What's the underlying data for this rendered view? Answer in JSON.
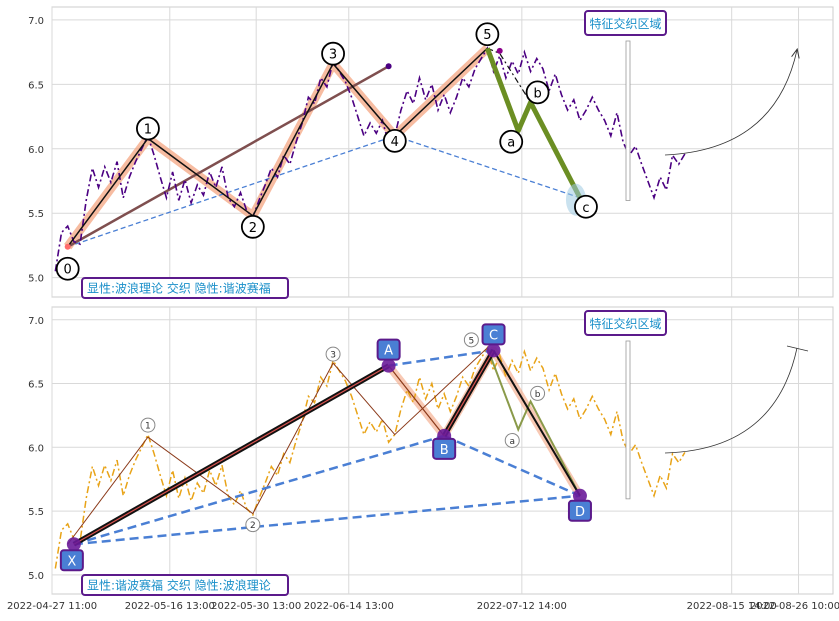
{
  "chart_data": [
    {
      "type": "line",
      "panel": "top",
      "ylim": [
        4.85,
        7.1
      ],
      "yticks": [
        "5.0",
        "5.5",
        "6.0",
        "6.5",
        "7.0"
      ],
      "x_domain": [
        "2022-04-27 11:00",
        "2022-09-01 00:00"
      ],
      "xticks": [
        "2022-04-27 11:00",
        "2022-05-16 13:00",
        "2022-05-30 13:00",
        "2022-06-14 13:00",
        "2022-07-12 14:00",
        "2022-08-15 14:00",
        "2022-08-26 10:00"
      ],
      "grid": true,
      "price_color": "#4b0082",
      "price_series": [
        [
          "2022-04-28",
          5.05
        ],
        [
          "2022-04-29",
          5.35
        ],
        [
          "2022-04-30",
          5.4
        ],
        [
          "2022-05-01",
          5.28
        ],
        [
          "2022-05-02",
          5.26
        ],
        [
          "2022-05-03",
          5.6
        ],
        [
          "2022-05-04",
          5.85
        ],
        [
          "2022-05-05",
          5.7
        ],
        [
          "2022-05-06",
          5.86
        ],
        [
          "2022-05-07",
          5.74
        ],
        [
          "2022-05-08",
          5.9
        ],
        [
          "2022-05-09",
          5.62
        ],
        [
          "2022-05-10",
          5.78
        ],
        [
          "2022-05-11",
          5.9
        ],
        [
          "2022-05-12",
          6.0
        ],
        [
          "2022-05-13",
          6.1
        ],
        [
          "2022-05-14",
          5.95
        ],
        [
          "2022-05-15",
          5.78
        ],
        [
          "2022-05-16",
          5.62
        ],
        [
          "2022-05-17",
          5.82
        ],
        [
          "2022-05-18",
          5.6
        ],
        [
          "2022-05-19",
          5.76
        ],
        [
          "2022-05-20",
          5.58
        ],
        [
          "2022-05-21",
          5.72
        ],
        [
          "2022-05-22",
          5.64
        ],
        [
          "2022-05-23",
          5.82
        ],
        [
          "2022-05-24",
          5.7
        ],
        [
          "2022-05-25",
          5.86
        ],
        [
          "2022-05-26",
          5.62
        ],
        [
          "2022-05-27",
          5.55
        ],
        [
          "2022-05-28",
          5.66
        ],
        [
          "2022-05-29",
          5.52
        ],
        [
          "2022-05-30",
          5.47
        ],
        [
          "2022-05-31",
          5.6
        ],
        [
          "2022-06-01",
          5.72
        ],
        [
          "2022-06-02",
          5.85
        ],
        [
          "2022-06-03",
          5.78
        ],
        [
          "2022-06-04",
          5.95
        ],
        [
          "2022-06-05",
          5.88
        ],
        [
          "2022-06-06",
          6.05
        ],
        [
          "2022-06-07",
          6.2
        ],
        [
          "2022-06-08",
          6.4
        ],
        [
          "2022-06-09",
          6.35
        ],
        [
          "2022-06-10",
          6.55
        ],
        [
          "2022-06-11",
          6.48
        ],
        [
          "2022-06-12",
          6.68
        ],
        [
          "2022-06-13",
          6.6
        ],
        [
          "2022-06-14",
          6.52
        ],
        [
          "2022-06-15",
          6.4
        ],
        [
          "2022-06-16",
          6.25
        ],
        [
          "2022-06-17",
          6.1
        ],
        [
          "2022-06-18",
          6.2
        ],
        [
          "2022-06-19",
          6.12
        ],
        [
          "2022-06-20",
          6.22
        ],
        [
          "2022-06-21",
          6.04
        ],
        [
          "2022-06-22",
          6.1
        ],
        [
          "2022-06-23",
          6.3
        ],
        [
          "2022-06-24",
          6.45
        ],
        [
          "2022-06-25",
          6.35
        ],
        [
          "2022-06-26",
          6.55
        ],
        [
          "2022-06-27",
          6.38
        ],
        [
          "2022-06-28",
          6.5
        ],
        [
          "2022-06-29",
          6.3
        ],
        [
          "2022-06-30",
          6.42
        ],
        [
          "2022-07-01",
          6.28
        ],
        [
          "2022-07-02",
          6.4
        ],
        [
          "2022-07-03",
          6.55
        ],
        [
          "2022-07-04",
          6.48
        ],
        [
          "2022-07-05",
          6.62
        ],
        [
          "2022-07-06",
          6.7
        ],
        [
          "2022-07-07",
          6.78
        ],
        [
          "2022-07-08",
          6.6
        ],
        [
          "2022-07-09",
          6.72
        ],
        [
          "2022-07-10",
          6.55
        ],
        [
          "2022-07-11",
          6.68
        ],
        [
          "2022-07-12",
          6.58
        ],
        [
          "2022-07-13",
          6.75
        ],
        [
          "2022-07-14",
          6.6
        ],
        [
          "2022-07-15",
          6.7
        ],
        [
          "2022-07-16",
          6.62
        ],
        [
          "2022-07-17",
          6.45
        ],
        [
          "2022-07-18",
          6.58
        ],
        [
          "2022-07-19",
          6.42
        ],
        [
          "2022-07-20",
          6.3
        ],
        [
          "2022-07-21",
          6.38
        ],
        [
          "2022-07-22",
          6.22
        ],
        [
          "2022-07-23",
          6.3
        ],
        [
          "2022-07-24",
          6.4
        ],
        [
          "2022-07-25",
          6.3
        ],
        [
          "2022-07-26",
          6.22
        ],
        [
          "2022-07-27",
          6.1
        ],
        [
          "2022-07-28",
          6.28
        ],
        [
          "2022-07-29",
          6.05
        ],
        [
          "2022-07-30",
          5.95
        ],
        [
          "2022-07-31",
          6.02
        ],
        [
          "2022-08-01",
          5.88
        ],
        [
          "2022-08-02",
          5.75
        ],
        [
          "2022-08-03",
          5.62
        ],
        [
          "2022-08-04",
          5.78
        ],
        [
          "2022-08-05",
          5.68
        ],
        [
          "2022-08-06",
          5.95
        ],
        [
          "2022-08-07",
          5.88
        ],
        [
          "2022-08-08",
          5.96
        ]
      ],
      "wave_points": [
        {
          "label": "0",
          "x": "2022-04-30",
          "y": 5.24
        },
        {
          "label": "1",
          "x": "2022-05-13",
          "y": 6.08
        },
        {
          "label": "2",
          "x": "2022-05-30",
          "y": 5.48
        },
        {
          "label": "3",
          "x": "2022-06-12",
          "y": 6.66
        },
        {
          "label": "4",
          "x": "2022-06-22",
          "y": 6.1
        },
        {
          "label": "5",
          "x": "2022-07-07",
          "y": 6.78
        },
        {
          "label": "a",
          "x": "2022-07-12",
          "y": 6.14
        },
        {
          "label": "b",
          "x": "2022-07-14",
          "y": 6.36
        },
        {
          "label": "c",
          "x": "2022-07-22",
          "y": 5.62
        }
      ],
      "legend_text": "显性:波浪理论 交织 隐性:谐波赛福",
      "region_label": "特征交织区域"
    },
    {
      "type": "line",
      "panel": "bottom",
      "ylim": [
        4.85,
        7.1
      ],
      "yticks": [
        "5.0",
        "5.5",
        "6.0",
        "6.5",
        "7.0"
      ],
      "price_color": "#e8a317",
      "wave_points": [
        {
          "label": "1",
          "x": "2022-05-13",
          "y": 6.08
        },
        {
          "label": "2",
          "x": "2022-05-30",
          "y": 5.48
        },
        {
          "label": "3",
          "x": "2022-06-12",
          "y": 6.66
        },
        {
          "label": "5",
          "x": "2022-07-07",
          "y": 6.78
        },
        {
          "label": "a",
          "x": "2022-07-12",
          "y": 6.14
        },
        {
          "label": "b",
          "x": "2022-07-14",
          "y": 6.36
        }
      ],
      "harmonic_points": [
        {
          "label": "X",
          "x": "2022-05-01",
          "y": 5.24
        },
        {
          "label": "A",
          "x": "2022-06-21",
          "y": 6.64
        },
        {
          "label": "B",
          "x": "2022-06-30",
          "y": 6.09
        },
        {
          "label": "C",
          "x": "2022-07-08",
          "y": 6.76
        },
        {
          "label": "D",
          "x": "2022-07-22",
          "y": 5.62
        }
      ],
      "legend_text": "显性:谐波赛福 交织 隐性:波浪理论",
      "region_label": "特征交织区域"
    }
  ]
}
